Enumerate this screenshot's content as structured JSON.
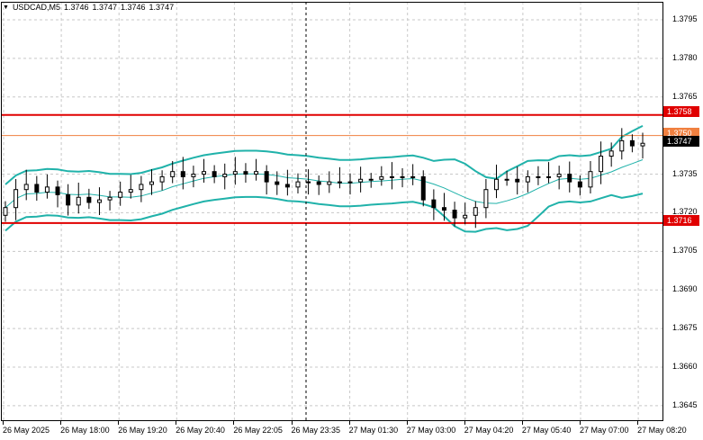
{
  "title": {
    "symbol_timeframe": "USDCAD,M5",
    "open": "1.3746",
    "high": "1.3747",
    "low": "1.3746",
    "close": "1.3747",
    "menu_icon": "triangle-down"
  },
  "price_axis": {
    "ticks": [
      "1.3795",
      "1.3780",
      "1.3765",
      "1.3735",
      "1.3720",
      "1.3705",
      "1.3690",
      "1.3675",
      "1.3660",
      "1.3645"
    ]
  },
  "time_axis": {
    "labels": [
      "26 May 2025",
      "26 May 18:00",
      "26 May 19:20",
      "26 May 20:40",
      "26 May 22:05",
      "26 May 23:35",
      "27 May 01:30",
      "27 May 03:00",
      "27 May 04:20",
      "27 May 05:40",
      "27 May 07:00",
      "27 May 08:20"
    ]
  },
  "levels": {
    "resistance": {
      "label": "1.3758",
      "color": "#e00000"
    },
    "pivot": {
      "label": "1.3750",
      "color": "#f08040"
    },
    "support": {
      "label": "1.3716",
      "color": "#e00000"
    },
    "current": {
      "label": "1.3747",
      "color": "#000000"
    }
  },
  "colors": {
    "bands": "#20b2aa",
    "grid": "#c8c8c8",
    "candles": "#000000",
    "crosshair": "#000000"
  },
  "chart_data": {
    "type": "candlestick",
    "symbol": "USDCAD",
    "timeframe": "M5",
    "ylim": [
      1.3639,
      1.3802
    ],
    "indicators": [
      "Bollinger Bands"
    ],
    "horizontal_levels": [
      1.3758,
      1.375,
      1.3716
    ],
    "last_price": 1.3747,
    "close_path": [
      1.3722,
      1.3729,
      1.3731,
      1.3728,
      1.373,
      1.3727,
      1.3723,
      1.3726,
      1.3724,
      1.3725,
      1.3726,
      1.3728,
      1.3729,
      1.3731,
      1.3732,
      1.3734,
      1.3736,
      1.3734,
      1.3735,
      1.3736,
      1.3734,
      1.3735,
      1.3736,
      1.3735,
      1.3736,
      1.3732,
      1.3731,
      1.373,
      1.3732,
      1.3732,
      1.3731,
      1.3732,
      1.3732,
      1.3732,
      1.3733,
      1.3733,
      1.3734,
      1.3734,
      1.3734,
      1.3734,
      1.3725,
      1.3722,
      1.3721,
      1.3718,
      1.3719,
      1.3722,
      1.3729,
      1.3733,
      1.3733,
      1.3732,
      1.3734,
      1.3734,
      1.3734,
      1.3735,
      1.3732,
      1.373,
      1.3736,
      1.3742,
      1.3744,
      1.3748,
      1.3746,
      1.3747
    ]
  }
}
